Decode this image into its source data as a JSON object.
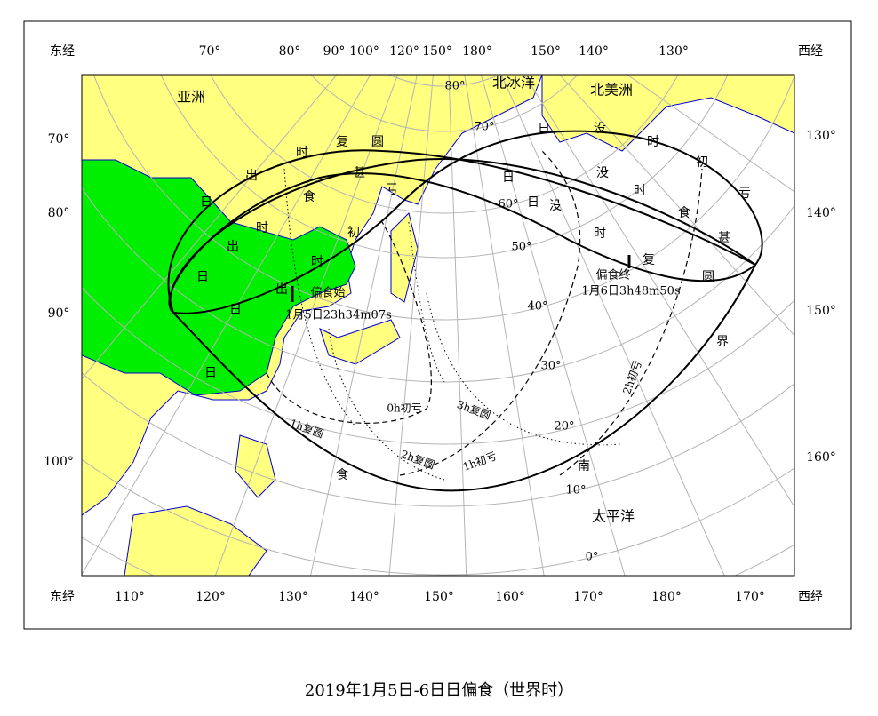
{
  "title": "2019年1月5日-6日日偏食（世界时）",
  "border_labels": {
    "top": [
      "东经",
      "70°",
      "80°",
      "90°",
      "100°",
      "120°",
      "150°",
      "180°",
      "150°",
      "140°",
      "130°",
      "西经"
    ],
    "bottom": [
      "东经",
      "110°",
      "120°",
      "130°",
      "140°",
      "150°",
      "160°",
      "170°",
      "180°",
      "170°",
      "西经"
    ],
    "left": [
      "70°",
      "80°",
      "90°",
      "100°"
    ],
    "right": [
      "130°",
      "140°",
      "150°",
      "160°"
    ]
  },
  "region_labels": [
    "亚洲",
    "北冰洋",
    "北美洲",
    "太平洋"
  ],
  "latitude_labels": [
    "80°",
    "70°",
    "60°",
    "50°",
    "40°",
    "30°",
    "20°",
    "10°",
    "0°"
  ],
  "curve_labels": [
    [
      "日",
      "出",
      "时",
      "复",
      "圆"
    ],
    [
      "日",
      "出",
      "时",
      "食",
      "甚"
    ],
    [
      "日",
      "出",
      "时",
      "初",
      "亏"
    ],
    [
      "日",
      "没",
      "时",
      "初",
      "亏"
    ],
    [
      "日",
      "没",
      "时",
      "食",
      "甚"
    ],
    [
      "日",
      "没",
      "时",
      "复",
      "圆"
    ]
  ],
  "eclipse_start": {
    "label": "偏食始",
    "time": "1月5日23h34m07s"
  },
  "eclipse_end": {
    "label": "偏食终",
    "time": "1月6日3h48m50s"
  },
  "hour_labels": [
    "0h初亏",
    "1h初亏",
    "1h复圆",
    "2h复圆",
    "2h初亏",
    "3h复圆"
  ],
  "south_limit": [
    "日",
    "食",
    "南",
    "界"
  ]
}
